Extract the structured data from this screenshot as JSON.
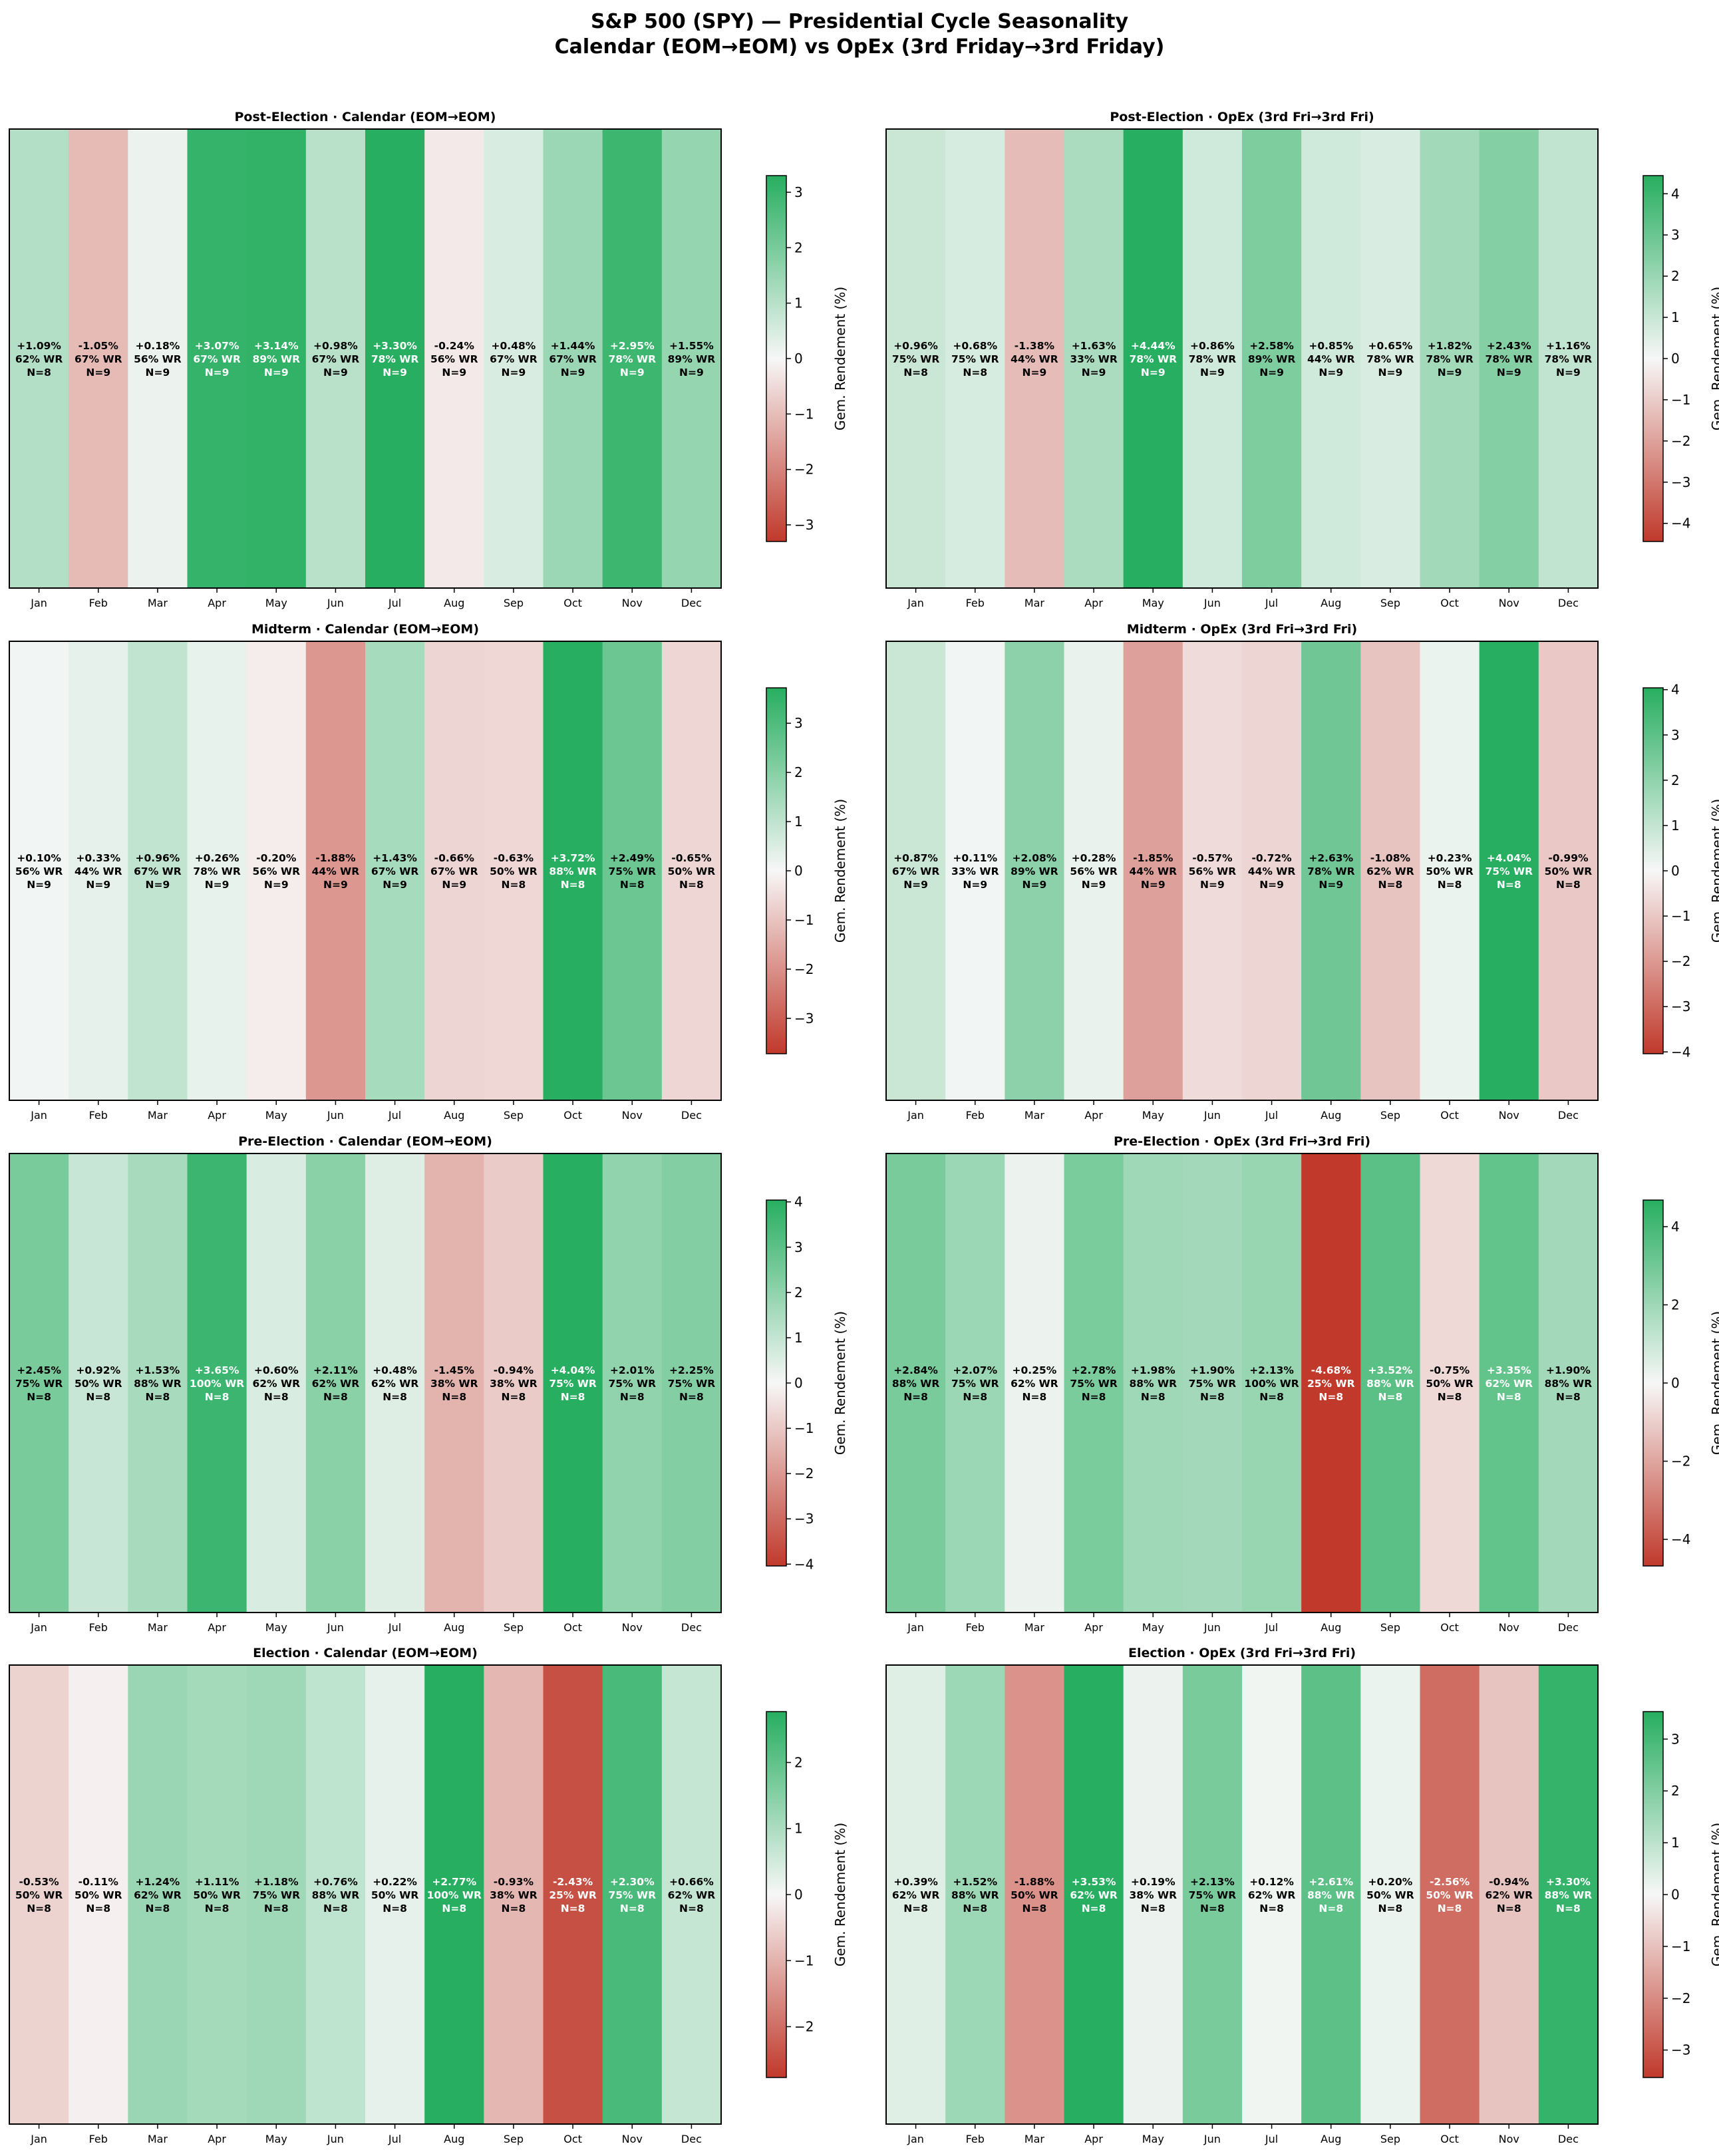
{
  "figure": {
    "title_line1": "S&P 500 (SPY) — Presidential Cycle Seasonality",
    "title_line2": "Calendar (EOM→EOM) vs OpEx (3rd Friday→3rd Friday)"
  },
  "chart_data": [
    {
      "type": "heatmap",
      "title": "Post-Election  ·  Calendar  (EOM→EOM)",
      "categories": [
        "Jan",
        "Feb",
        "Mar",
        "Apr",
        "May",
        "Jun",
        "Jul",
        "Aug",
        "Sep",
        "Oct",
        "Nov",
        "Dec"
      ],
      "values": [
        1.09,
        -1.05,
        0.18,
        3.07,
        3.14,
        0.98,
        3.3,
        -0.24,
        0.48,
        1.44,
        2.95,
        1.55
      ],
      "labels": [
        "+1.09%",
        "-1.05%",
        "+0.18%",
        "+3.07%",
        "+3.14%",
        "+0.98%",
        "+3.30%",
        "-0.24%",
        "+0.48%",
        "+1.44%",
        "+2.95%",
        "+1.55%"
      ],
      "win_rate": [
        "62% WR",
        "67% WR",
        "56% WR",
        "67% WR",
        "89% WR",
        "67% WR",
        "78% WR",
        "56% WR",
        "67% WR",
        "67% WR",
        "78% WR",
        "89% WR"
      ],
      "n": [
        "N=8",
        "N=9",
        "N=9",
        "N=9",
        "N=9",
        "N=9",
        "N=9",
        "N=9",
        "N=9",
        "N=9",
        "N=9",
        "N=9"
      ],
      "colorbar_label": "Gem. Rendement (%)",
      "vmax": 3.3,
      "ticks": [
        -3,
        -2,
        -1,
        0,
        1,
        2,
        3
      ],
      "tick_labels": [
        "−3",
        "−2",
        "−1",
        "0",
        "1",
        "2",
        "3"
      ]
    },
    {
      "type": "heatmap",
      "title": "Post-Election  ·  OpEx  (3rd Fri→3rd Fri)",
      "categories": [
        "Jan",
        "Feb",
        "Mar",
        "Apr",
        "May",
        "Jun",
        "Jul",
        "Aug",
        "Sep",
        "Oct",
        "Nov",
        "Dec"
      ],
      "values": [
        0.96,
        0.68,
        -1.38,
        1.63,
        4.44,
        0.86,
        2.58,
        0.85,
        0.65,
        1.82,
        2.43,
        1.16
      ],
      "labels": [
        "+0.96%",
        "+0.68%",
        "-1.38%",
        "+1.63%",
        "+4.44%",
        "+0.86%",
        "+2.58%",
        "+0.85%",
        "+0.65%",
        "+1.82%",
        "+2.43%",
        "+1.16%"
      ],
      "win_rate": [
        "75% WR",
        "75% WR",
        "44% WR",
        "33% WR",
        "78% WR",
        "78% WR",
        "89% WR",
        "44% WR",
        "78% WR",
        "78% WR",
        "78% WR",
        "78% WR"
      ],
      "n": [
        "N=8",
        "N=8",
        "N=9",
        "N=9",
        "N=9",
        "N=9",
        "N=9",
        "N=9",
        "N=9",
        "N=9",
        "N=9",
        "N=9"
      ],
      "colorbar_label": "Gem. Rendement (%)",
      "vmax": 4.44,
      "ticks": [
        -4,
        -3,
        -2,
        -1,
        0,
        1,
        2,
        3,
        4
      ],
      "tick_labels": [
        "−4",
        "−3",
        "−2",
        "−1",
        "0",
        "1",
        "2",
        "3",
        "4"
      ]
    },
    {
      "type": "heatmap",
      "title": "Midterm  ·  Calendar  (EOM→EOM)",
      "categories": [
        "Jan",
        "Feb",
        "Mar",
        "Apr",
        "May",
        "Jun",
        "Jul",
        "Aug",
        "Sep",
        "Oct",
        "Nov",
        "Dec"
      ],
      "values": [
        0.1,
        0.33,
        0.96,
        0.26,
        -0.2,
        -1.88,
        1.43,
        -0.66,
        -0.63,
        3.72,
        2.49,
        -0.65
      ],
      "labels": [
        "+0.10%",
        "+0.33%",
        "+0.96%",
        "+0.26%",
        "-0.20%",
        "-1.88%",
        "+1.43%",
        "-0.66%",
        "-0.63%",
        "+3.72%",
        "+2.49%",
        "-0.65%"
      ],
      "win_rate": [
        "56% WR",
        "44% WR",
        "67% WR",
        "78% WR",
        "56% WR",
        "44% WR",
        "67% WR",
        "67% WR",
        "50% WR",
        "88% WR",
        "75% WR",
        "50% WR"
      ],
      "n": [
        "N=9",
        "N=9",
        "N=9",
        "N=9",
        "N=9",
        "N=9",
        "N=9",
        "N=9",
        "N=8",
        "N=8",
        "N=8",
        "N=8"
      ],
      "colorbar_label": "Gem. Rendement (%)",
      "vmax": 3.72,
      "ticks": [
        -3,
        -2,
        -1,
        0,
        1,
        2,
        3
      ],
      "tick_labels": [
        "−3",
        "−2",
        "−1",
        "0",
        "1",
        "2",
        "3"
      ]
    },
    {
      "type": "heatmap",
      "title": "Midterm  ·  OpEx  (3rd Fri→3rd Fri)",
      "categories": [
        "Jan",
        "Feb",
        "Mar",
        "Apr",
        "May",
        "Jun",
        "Jul",
        "Aug",
        "Sep",
        "Oct",
        "Nov",
        "Dec"
      ],
      "values": [
        0.87,
        0.11,
        2.08,
        0.28,
        -1.85,
        -0.57,
        -0.72,
        2.63,
        -1.08,
        0.23,
        4.04,
        -0.99
      ],
      "labels": [
        "+0.87%",
        "+0.11%",
        "+2.08%",
        "+0.28%",
        "-1.85%",
        "-0.57%",
        "-0.72%",
        "+2.63%",
        "-1.08%",
        "+0.23%",
        "+4.04%",
        "-0.99%"
      ],
      "win_rate": [
        "67% WR",
        "33% WR",
        "89% WR",
        "56% WR",
        "44% WR",
        "56% WR",
        "44% WR",
        "78% WR",
        "62% WR",
        "50% WR",
        "75% WR",
        "50% WR"
      ],
      "n": [
        "N=9",
        "N=9",
        "N=9",
        "N=9",
        "N=9",
        "N=9",
        "N=9",
        "N=9",
        "N=8",
        "N=8",
        "N=8",
        "N=8"
      ],
      "colorbar_label": "Gem. Rendement (%)",
      "vmax": 4.04,
      "ticks": [
        -4,
        -3,
        -2,
        -1,
        0,
        1,
        2,
        3,
        4
      ],
      "tick_labels": [
        "−4",
        "−3",
        "−2",
        "−1",
        "0",
        "1",
        "2",
        "3",
        "4"
      ]
    },
    {
      "type": "heatmap",
      "title": "Pre-Election  ·  Calendar  (EOM→EOM)",
      "categories": [
        "Jan",
        "Feb",
        "Mar",
        "Apr",
        "May",
        "Jun",
        "Jul",
        "Aug",
        "Sep",
        "Oct",
        "Nov",
        "Dec"
      ],
      "values": [
        2.45,
        0.92,
        1.53,
        3.65,
        0.6,
        2.11,
        0.48,
        -1.45,
        -0.94,
        4.04,
        2.01,
        2.25
      ],
      "labels": [
        "+2.45%",
        "+0.92%",
        "+1.53%",
        "+3.65%",
        "+0.60%",
        "+2.11%",
        "+0.48%",
        "-1.45%",
        "-0.94%",
        "+4.04%",
        "+2.01%",
        "+2.25%"
      ],
      "win_rate": [
        "75% WR",
        "50% WR",
        "88% WR",
        "100% WR",
        "62% WR",
        "62% WR",
        "62% WR",
        "38% WR",
        "38% WR",
        "75% WR",
        "75% WR",
        "75% WR"
      ],
      "n": [
        "N=8",
        "N=8",
        "N=8",
        "N=8",
        "N=8",
        "N=8",
        "N=8",
        "N=8",
        "N=8",
        "N=8",
        "N=8",
        "N=8"
      ],
      "colorbar_label": "Gem. Rendement (%)",
      "vmax": 4.04,
      "ticks": [
        -4,
        -3,
        -2,
        -1,
        0,
        1,
        2,
        3,
        4
      ],
      "tick_labels": [
        "−4",
        "−3",
        "−2",
        "−1",
        "0",
        "1",
        "2",
        "3",
        "4"
      ]
    },
    {
      "type": "heatmap",
      "title": "Pre-Election  ·  OpEx  (3rd Fri→3rd Fri)",
      "categories": [
        "Jan",
        "Feb",
        "Mar",
        "Apr",
        "May",
        "Jun",
        "Jul",
        "Aug",
        "Sep",
        "Oct",
        "Nov",
        "Dec"
      ],
      "values": [
        2.84,
        2.07,
        0.25,
        2.78,
        1.98,
        1.9,
        2.13,
        -4.68,
        3.52,
        -0.75,
        3.35,
        1.9
      ],
      "labels": [
        "+2.84%",
        "+2.07%",
        "+0.25%",
        "+2.78%",
        "+1.98%",
        "+1.90%",
        "+2.13%",
        "-4.68%",
        "+3.52%",
        "-0.75%",
        "+3.35%",
        "+1.90%"
      ],
      "win_rate": [
        "88% WR",
        "75% WR",
        "62% WR",
        "75% WR",
        "88% WR",
        "75% WR",
        "100% WR",
        "25% WR",
        "88% WR",
        "50% WR",
        "62% WR",
        "88% WR"
      ],
      "n": [
        "N=8",
        "N=8",
        "N=8",
        "N=8",
        "N=8",
        "N=8",
        "N=8",
        "N=8",
        "N=8",
        "N=8",
        "N=8",
        "N=8"
      ],
      "colorbar_label": "Gem. Rendement (%)",
      "vmax": 4.68,
      "ticks": [
        -4,
        -2,
        0,
        2,
        4
      ],
      "tick_labels": [
        "−4",
        "−2",
        "0",
        "2",
        "4"
      ]
    },
    {
      "type": "heatmap",
      "title": "Election  ·  Calendar  (EOM→EOM)",
      "categories": [
        "Jan",
        "Feb",
        "Mar",
        "Apr",
        "May",
        "Jun",
        "Jul",
        "Aug",
        "Sep",
        "Oct",
        "Nov",
        "Dec"
      ],
      "values": [
        -0.53,
        -0.11,
        1.24,
        1.11,
        1.18,
        0.76,
        0.22,
        2.77,
        -0.93,
        -2.43,
        2.3,
        0.66
      ],
      "labels": [
        "-0.53%",
        "-0.11%",
        "+1.24%",
        "+1.11%",
        "+1.18%",
        "+0.76%",
        "+0.22%",
        "+2.77%",
        "-0.93%",
        "-2.43%",
        "+2.30%",
        "+0.66%"
      ],
      "win_rate": [
        "50% WR",
        "50% WR",
        "62% WR",
        "50% WR",
        "75% WR",
        "88% WR",
        "50% WR",
        "100% WR",
        "38% WR",
        "25% WR",
        "75% WR",
        "62% WR"
      ],
      "n": [
        "N=8",
        "N=8",
        "N=8",
        "N=8",
        "N=8",
        "N=8",
        "N=8",
        "N=8",
        "N=8",
        "N=8",
        "N=8",
        "N=8"
      ],
      "colorbar_label": "Gem. Rendement (%)",
      "vmax": 2.77,
      "ticks": [
        -2,
        -1,
        0,
        1,
        2
      ],
      "tick_labels": [
        "−2",
        "−1",
        "0",
        "1",
        "2"
      ]
    },
    {
      "type": "heatmap",
      "title": "Election  ·  OpEx  (3rd Fri→3rd Fri)",
      "categories": [
        "Jan",
        "Feb",
        "Mar",
        "Apr",
        "May",
        "Jun",
        "Jul",
        "Aug",
        "Sep",
        "Oct",
        "Nov",
        "Dec"
      ],
      "values": [
        0.39,
        1.52,
        -1.88,
        3.53,
        0.19,
        2.13,
        0.12,
        2.61,
        0.2,
        -2.56,
        -0.94,
        3.3
      ],
      "labels": [
        "+0.39%",
        "+1.52%",
        "-1.88%",
        "+3.53%",
        "+0.19%",
        "+2.13%",
        "+0.12%",
        "+2.61%",
        "+0.20%",
        "-2.56%",
        "-0.94%",
        "+3.30%"
      ],
      "win_rate": [
        "62% WR",
        "88% WR",
        "50% WR",
        "62% WR",
        "38% WR",
        "75% WR",
        "62% WR",
        "88% WR",
        "50% WR",
        "50% WR",
        "62% WR",
        "88% WR"
      ],
      "n": [
        "N=8",
        "N=8",
        "N=8",
        "N=8",
        "N=8",
        "N=8",
        "N=8",
        "N=8",
        "N=8",
        "N=8",
        "N=8",
        "N=8"
      ],
      "colorbar_label": "Gem. Rendement (%)",
      "vmax": 3.53,
      "ticks": [
        -3,
        -2,
        -1,
        0,
        1,
        2,
        3
      ],
      "tick_labels": [
        "−3",
        "−2",
        "−1",
        "0",
        "1",
        "2",
        "3"
      ]
    }
  ],
  "colors": {
    "negative": "#c0392b",
    "neutral": "#f7f7f7",
    "positive": "#27ae60"
  }
}
